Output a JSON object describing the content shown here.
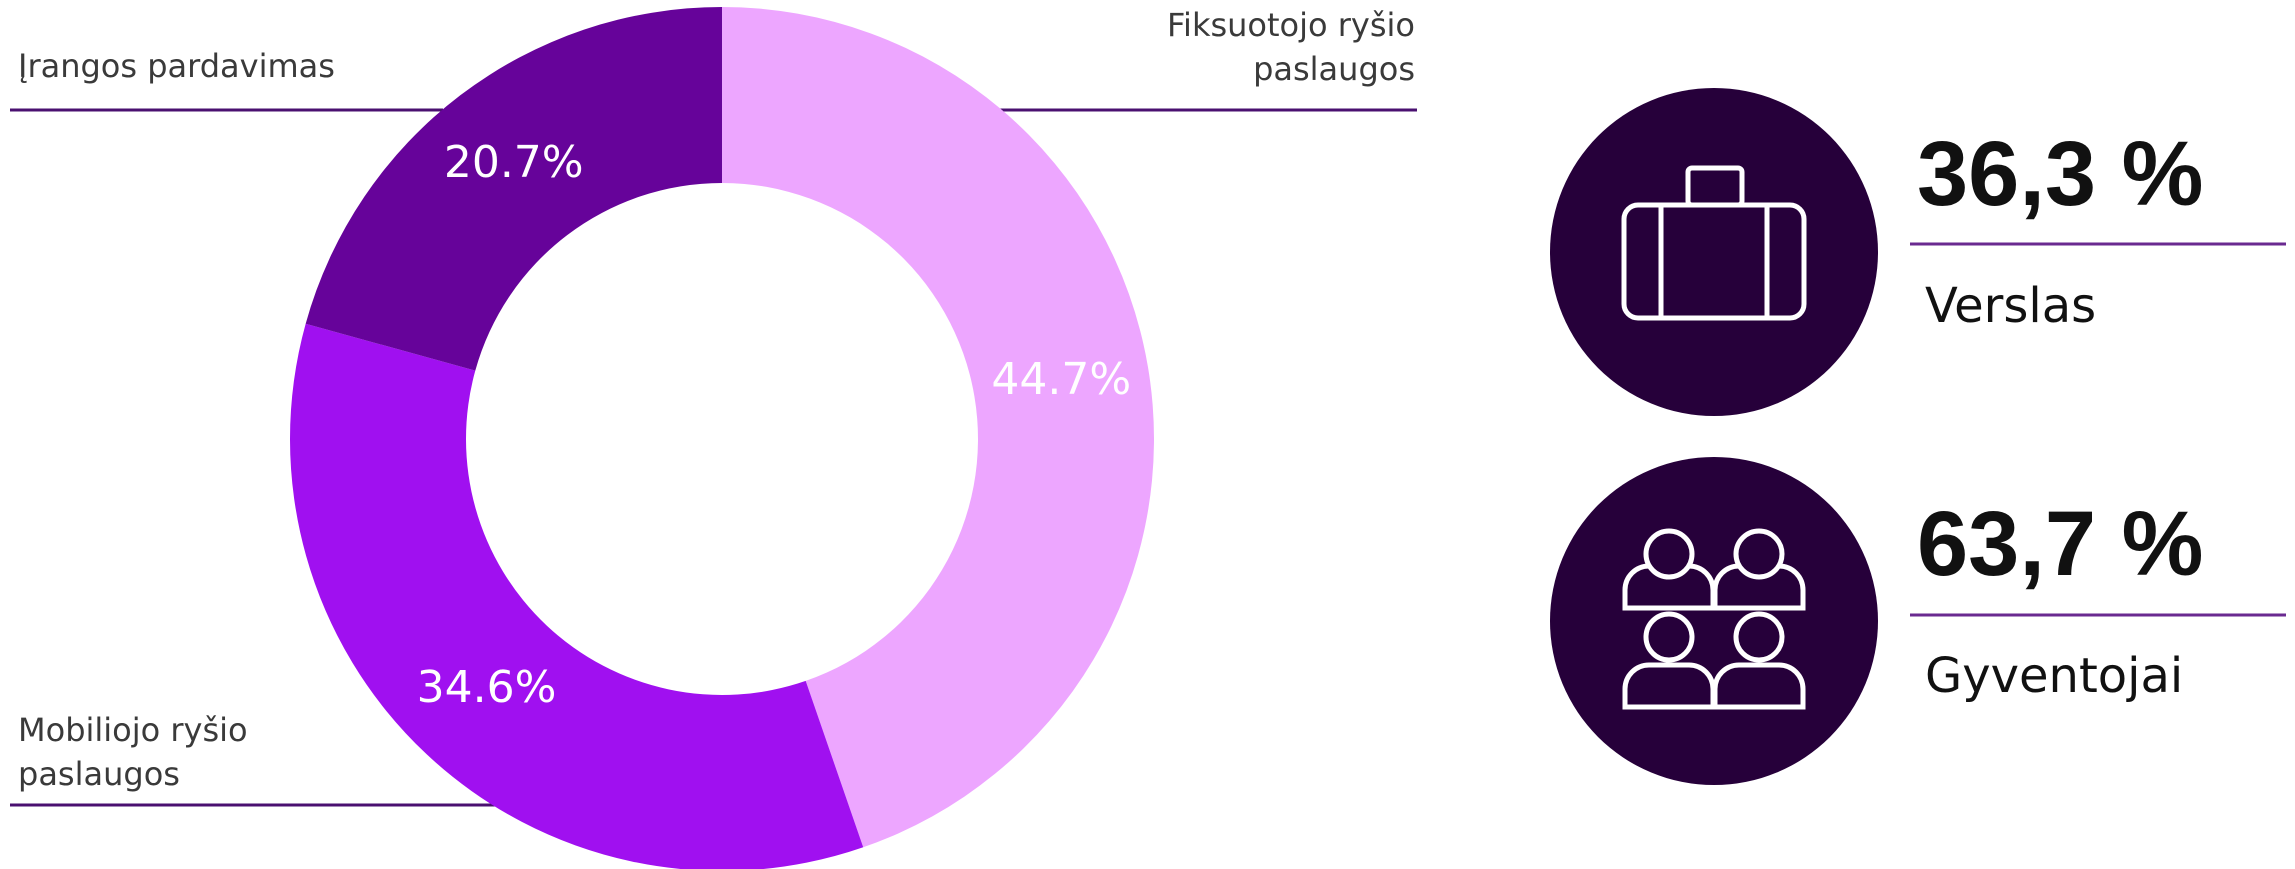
{
  "chart_data": {
    "type": "donut",
    "categories": [
      "Fiksuotojo ryšio paslaugos",
      "Mobiliojo ryšio paslaugos",
      "Įrangos pardavimas"
    ],
    "values": [
      44.7,
      34.6,
      20.7
    ],
    "value_labels": [
      "44.7%",
      "34.6%",
      "20.7%"
    ],
    "colors": [
      "#eda6ff",
      "#a010f0",
      "#66039a"
    ]
  },
  "stats": [
    {
      "value": "36,3 %",
      "label": "Verslas"
    },
    {
      "value": "63,7 %",
      "label": "Gyventojai"
    }
  ]
}
